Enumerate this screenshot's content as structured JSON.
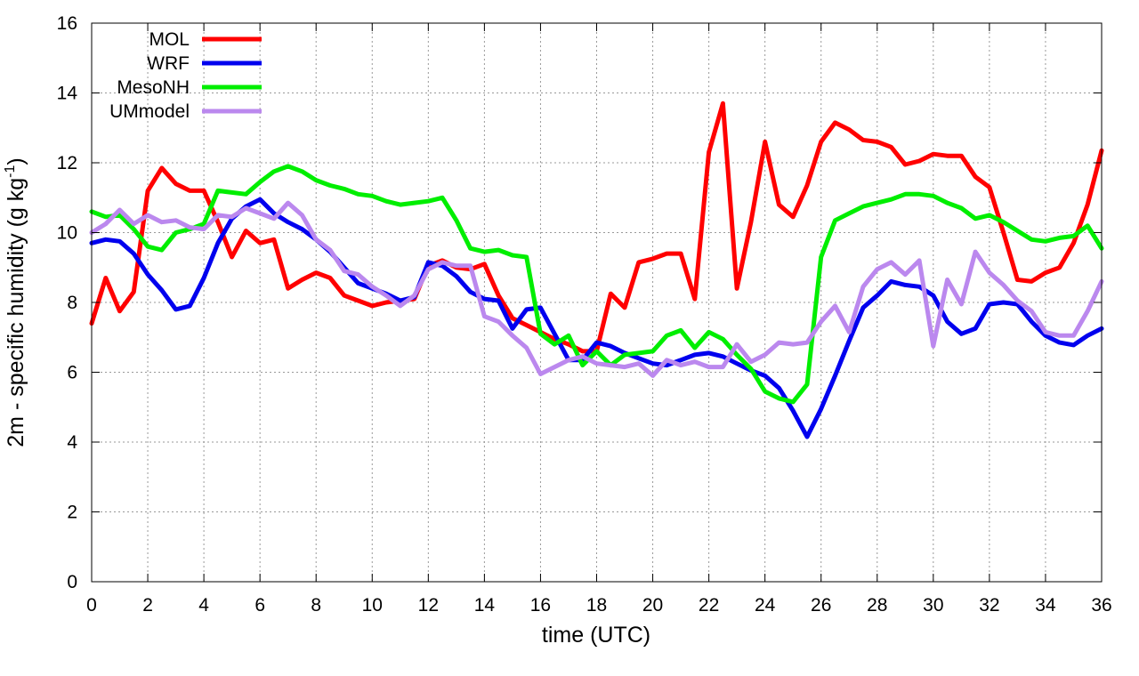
{
  "chart_data": {
    "type": "line",
    "xlabel": "time (UTC)",
    "ylabel_main": "2m - specific humidity (g kg",
    "ylabel_sup": "-1",
    "ylabel_close": ")",
    "xlim": [
      0,
      36
    ],
    "ylim": [
      0,
      16
    ],
    "xticks": [
      0,
      2,
      4,
      6,
      8,
      10,
      12,
      14,
      16,
      18,
      20,
      22,
      24,
      26,
      28,
      30,
      32,
      34,
      36
    ],
    "yticks": [
      0,
      2,
      4,
      6,
      8,
      10,
      12,
      14,
      16
    ],
    "grid": true,
    "legend_position": "top-left",
    "series": [
      {
        "name": "MOL",
        "color": "#ff0000",
        "points": [
          [
            0,
            7.4
          ],
          [
            0.5,
            8.7
          ],
          [
            1,
            7.75
          ],
          [
            1.5,
            8.3
          ],
          [
            2,
            11.2
          ],
          [
            2.5,
            11.85
          ],
          [
            3,
            11.4
          ],
          [
            3.5,
            11.2
          ],
          [
            4,
            11.2
          ],
          [
            4.5,
            10.3
          ],
          [
            5,
            9.3
          ],
          [
            5.5,
            10.05
          ],
          [
            6,
            9.7
          ],
          [
            6.5,
            9.8
          ],
          [
            7,
            8.4
          ],
          [
            7.5,
            8.65
          ],
          [
            8,
            8.85
          ],
          [
            8.5,
            8.7
          ],
          [
            9,
            8.2
          ],
          [
            9.5,
            8.05
          ],
          [
            10,
            7.9
          ],
          [
            10.5,
            8.0
          ],
          [
            11,
            8.05
          ],
          [
            11.5,
            8.1
          ],
          [
            12,
            9.05
          ],
          [
            12.5,
            9.2
          ],
          [
            13,
            9.0
          ],
          [
            13.5,
            8.95
          ],
          [
            14,
            9.1
          ],
          [
            14.5,
            8.2
          ],
          [
            15,
            7.55
          ],
          [
            15.5,
            7.35
          ],
          [
            16,
            7.15
          ],
          [
            16.5,
            6.95
          ],
          [
            17,
            6.8
          ],
          [
            17.5,
            6.6
          ],
          [
            18,
            6.6
          ],
          [
            18.5,
            8.25
          ],
          [
            19,
            7.85
          ],
          [
            19.5,
            9.15
          ],
          [
            20,
            9.25
          ],
          [
            20.5,
            9.4
          ],
          [
            21,
            9.4
          ],
          [
            21.5,
            8.1
          ],
          [
            22,
            12.3
          ],
          [
            22.5,
            13.7
          ],
          [
            23,
            8.4
          ],
          [
            23.5,
            10.3
          ],
          [
            24,
            12.6
          ],
          [
            24.5,
            10.8
          ],
          [
            25,
            10.45
          ],
          [
            25.5,
            11.35
          ],
          [
            26,
            12.6
          ],
          [
            26.5,
            13.15
          ],
          [
            27,
            12.95
          ],
          [
            27.5,
            12.65
          ],
          [
            28,
            12.6
          ],
          [
            28.5,
            12.45
          ],
          [
            29,
            11.95
          ],
          [
            29.5,
            12.05
          ],
          [
            30,
            12.25
          ],
          [
            30.5,
            12.2
          ],
          [
            31,
            12.2
          ],
          [
            31.5,
            11.6
          ],
          [
            32,
            11.3
          ],
          [
            32.5,
            10.0
          ],
          [
            33,
            8.65
          ],
          [
            33.5,
            8.6
          ],
          [
            34,
            8.85
          ],
          [
            34.5,
            9.0
          ],
          [
            35,
            9.7
          ],
          [
            35.5,
            10.8
          ],
          [
            36,
            12.35
          ]
        ]
      },
      {
        "name": "WRF",
        "color": "#0000ee",
        "points": [
          [
            0,
            9.7
          ],
          [
            0.5,
            9.8
          ],
          [
            1,
            9.75
          ],
          [
            1.5,
            9.4
          ],
          [
            2,
            8.8
          ],
          [
            2.5,
            8.35
          ],
          [
            3,
            7.8
          ],
          [
            3.5,
            7.9
          ],
          [
            4,
            8.7
          ],
          [
            4.5,
            9.7
          ],
          [
            5,
            10.4
          ],
          [
            5.5,
            10.75
          ],
          [
            6,
            10.95
          ],
          [
            6.5,
            10.55
          ],
          [
            7,
            10.3
          ],
          [
            7.5,
            10.1
          ],
          [
            8,
            9.8
          ],
          [
            8.5,
            9.45
          ],
          [
            9,
            9.0
          ],
          [
            9.5,
            8.55
          ],
          [
            10,
            8.4
          ],
          [
            10.5,
            8.25
          ],
          [
            11,
            8.05
          ],
          [
            11.5,
            8.15
          ],
          [
            12,
            9.15
          ],
          [
            12.5,
            9.05
          ],
          [
            13,
            8.75
          ],
          [
            13.5,
            8.3
          ],
          [
            14,
            8.1
          ],
          [
            14.5,
            8.05
          ],
          [
            15,
            7.25
          ],
          [
            15.5,
            7.8
          ],
          [
            16,
            7.85
          ],
          [
            16.5,
            7.1
          ],
          [
            17,
            6.35
          ],
          [
            17.5,
            6.35
          ],
          [
            18,
            6.85
          ],
          [
            18.5,
            6.75
          ],
          [
            19,
            6.55
          ],
          [
            19.5,
            6.4
          ],
          [
            20,
            6.25
          ],
          [
            20.5,
            6.2
          ],
          [
            21,
            6.35
          ],
          [
            21.5,
            6.5
          ],
          [
            22,
            6.55
          ],
          [
            22.5,
            6.45
          ],
          [
            23,
            6.25
          ],
          [
            23.5,
            6.05
          ],
          [
            24,
            5.9
          ],
          [
            24.5,
            5.55
          ],
          [
            25,
            4.9
          ],
          [
            25.5,
            4.15
          ],
          [
            26,
            4.95
          ],
          [
            26.5,
            5.9
          ],
          [
            27,
            6.9
          ],
          [
            27.5,
            7.85
          ],
          [
            28,
            8.2
          ],
          [
            28.5,
            8.6
          ],
          [
            29,
            8.5
          ],
          [
            29.5,
            8.45
          ],
          [
            30,
            8.2
          ],
          [
            30.5,
            7.45
          ],
          [
            31,
            7.1
          ],
          [
            31.5,
            7.25
          ],
          [
            32,
            7.95
          ],
          [
            32.5,
            8.0
          ],
          [
            33,
            7.95
          ],
          [
            33.5,
            7.45
          ],
          [
            34,
            7.05
          ],
          [
            34.5,
            6.85
          ],
          [
            35,
            6.78
          ],
          [
            35.5,
            7.05
          ],
          [
            36,
            7.25
          ]
        ]
      },
      {
        "name": "MesoNH",
        "color": "#00ee00",
        "points": [
          [
            0,
            10.6
          ],
          [
            0.5,
            10.45
          ],
          [
            1,
            10.5
          ],
          [
            1.5,
            10.1
          ],
          [
            2,
            9.6
          ],
          [
            2.5,
            9.5
          ],
          [
            3,
            10.0
          ],
          [
            3.5,
            10.1
          ],
          [
            4,
            10.25
          ],
          [
            4.5,
            11.2
          ],
          [
            5,
            11.15
          ],
          [
            5.5,
            11.1
          ],
          [
            6,
            11.45
          ],
          [
            6.5,
            11.75
          ],
          [
            7,
            11.9
          ],
          [
            7.5,
            11.75
          ],
          [
            8,
            11.5
          ],
          [
            8.5,
            11.35
          ],
          [
            9,
            11.25
          ],
          [
            9.5,
            11.1
          ],
          [
            10,
            11.05
          ],
          [
            10.5,
            10.9
          ],
          [
            11,
            10.8
          ],
          [
            11.5,
            10.85
          ],
          [
            12,
            10.9
          ],
          [
            12.5,
            11.0
          ],
          [
            13,
            10.35
          ],
          [
            13.5,
            9.55
          ],
          [
            14,
            9.45
          ],
          [
            14.5,
            9.5
          ],
          [
            15,
            9.35
          ],
          [
            15.5,
            9.3
          ],
          [
            16,
            7.1
          ],
          [
            16.5,
            6.8
          ],
          [
            17,
            7.05
          ],
          [
            17.5,
            6.2
          ],
          [
            18,
            6.6
          ],
          [
            18.5,
            6.2
          ],
          [
            19,
            6.5
          ],
          [
            19.5,
            6.55
          ],
          [
            20,
            6.6
          ],
          [
            20.5,
            7.05
          ],
          [
            21,
            7.2
          ],
          [
            21.5,
            6.7
          ],
          [
            22,
            7.15
          ],
          [
            22.5,
            6.95
          ],
          [
            23,
            6.5
          ],
          [
            23.5,
            6.1
          ],
          [
            24,
            5.45
          ],
          [
            24.5,
            5.25
          ],
          [
            25,
            5.15
          ],
          [
            25.5,
            5.65
          ],
          [
            26,
            9.3
          ],
          [
            26.5,
            10.35
          ],
          [
            27,
            10.55
          ],
          [
            27.5,
            10.75
          ],
          [
            28,
            10.85
          ],
          [
            28.5,
            10.95
          ],
          [
            29,
            11.1
          ],
          [
            29.5,
            11.1
          ],
          [
            30,
            11.05
          ],
          [
            30.5,
            10.85
          ],
          [
            31,
            10.7
          ],
          [
            31.5,
            10.4
          ],
          [
            32,
            10.5
          ],
          [
            32.5,
            10.3
          ],
          [
            33,
            10.05
          ],
          [
            33.5,
            9.8
          ],
          [
            34,
            9.75
          ],
          [
            34.5,
            9.85
          ],
          [
            35,
            9.9
          ],
          [
            35.5,
            10.2
          ],
          [
            36,
            9.55
          ]
        ]
      },
      {
        "name": "UMmodel",
        "color": "#bb88ee",
        "points": [
          [
            0,
            10.0
          ],
          [
            0.5,
            10.25
          ],
          [
            1,
            10.65
          ],
          [
            1.5,
            10.25
          ],
          [
            2,
            10.5
          ],
          [
            2.5,
            10.3
          ],
          [
            3,
            10.35
          ],
          [
            3.5,
            10.15
          ],
          [
            4,
            10.1
          ],
          [
            4.5,
            10.5
          ],
          [
            5,
            10.45
          ],
          [
            5.5,
            10.7
          ],
          [
            6,
            10.55
          ],
          [
            6.5,
            10.4
          ],
          [
            7,
            10.85
          ],
          [
            7.5,
            10.5
          ],
          [
            8,
            9.8
          ],
          [
            8.5,
            9.5
          ],
          [
            9,
            8.9
          ],
          [
            9.5,
            8.8
          ],
          [
            10,
            8.45
          ],
          [
            10.5,
            8.2
          ],
          [
            11,
            7.9
          ],
          [
            11.5,
            8.2
          ],
          [
            12,
            8.95
          ],
          [
            12.5,
            9.15
          ],
          [
            13,
            9.05
          ],
          [
            13.5,
            9.05
          ],
          [
            14,
            7.6
          ],
          [
            14.5,
            7.45
          ],
          [
            15,
            7.05
          ],
          [
            15.5,
            6.7
          ],
          [
            16,
            5.95
          ],
          [
            16.5,
            6.15
          ],
          [
            17,
            6.35
          ],
          [
            17.5,
            6.45
          ],
          [
            18,
            6.25
          ],
          [
            18.5,
            6.2
          ],
          [
            19,
            6.15
          ],
          [
            19.5,
            6.25
          ],
          [
            20,
            5.9
          ],
          [
            20.5,
            6.35
          ],
          [
            21,
            6.2
          ],
          [
            21.5,
            6.3
          ],
          [
            22,
            6.15
          ],
          [
            22.5,
            6.15
          ],
          [
            23,
            6.8
          ],
          [
            23.5,
            6.3
          ],
          [
            24,
            6.5
          ],
          [
            24.5,
            6.85
          ],
          [
            25,
            6.8
          ],
          [
            25.5,
            6.85
          ],
          [
            26,
            7.45
          ],
          [
            26.5,
            7.9
          ],
          [
            27,
            7.15
          ],
          [
            27.5,
            8.45
          ],
          [
            28,
            8.95
          ],
          [
            28.5,
            9.15
          ],
          [
            29,
            8.8
          ],
          [
            29.5,
            9.2
          ],
          [
            30,
            6.75
          ],
          [
            30.5,
            8.65
          ],
          [
            31,
            7.95
          ],
          [
            31.5,
            9.45
          ],
          [
            32,
            8.85
          ],
          [
            32.5,
            8.5
          ],
          [
            33,
            8.05
          ],
          [
            33.5,
            7.75
          ],
          [
            34,
            7.15
          ],
          [
            34.5,
            7.05
          ],
          [
            35,
            7.05
          ],
          [
            35.5,
            7.75
          ],
          [
            36,
            8.6
          ]
        ]
      }
    ]
  }
}
